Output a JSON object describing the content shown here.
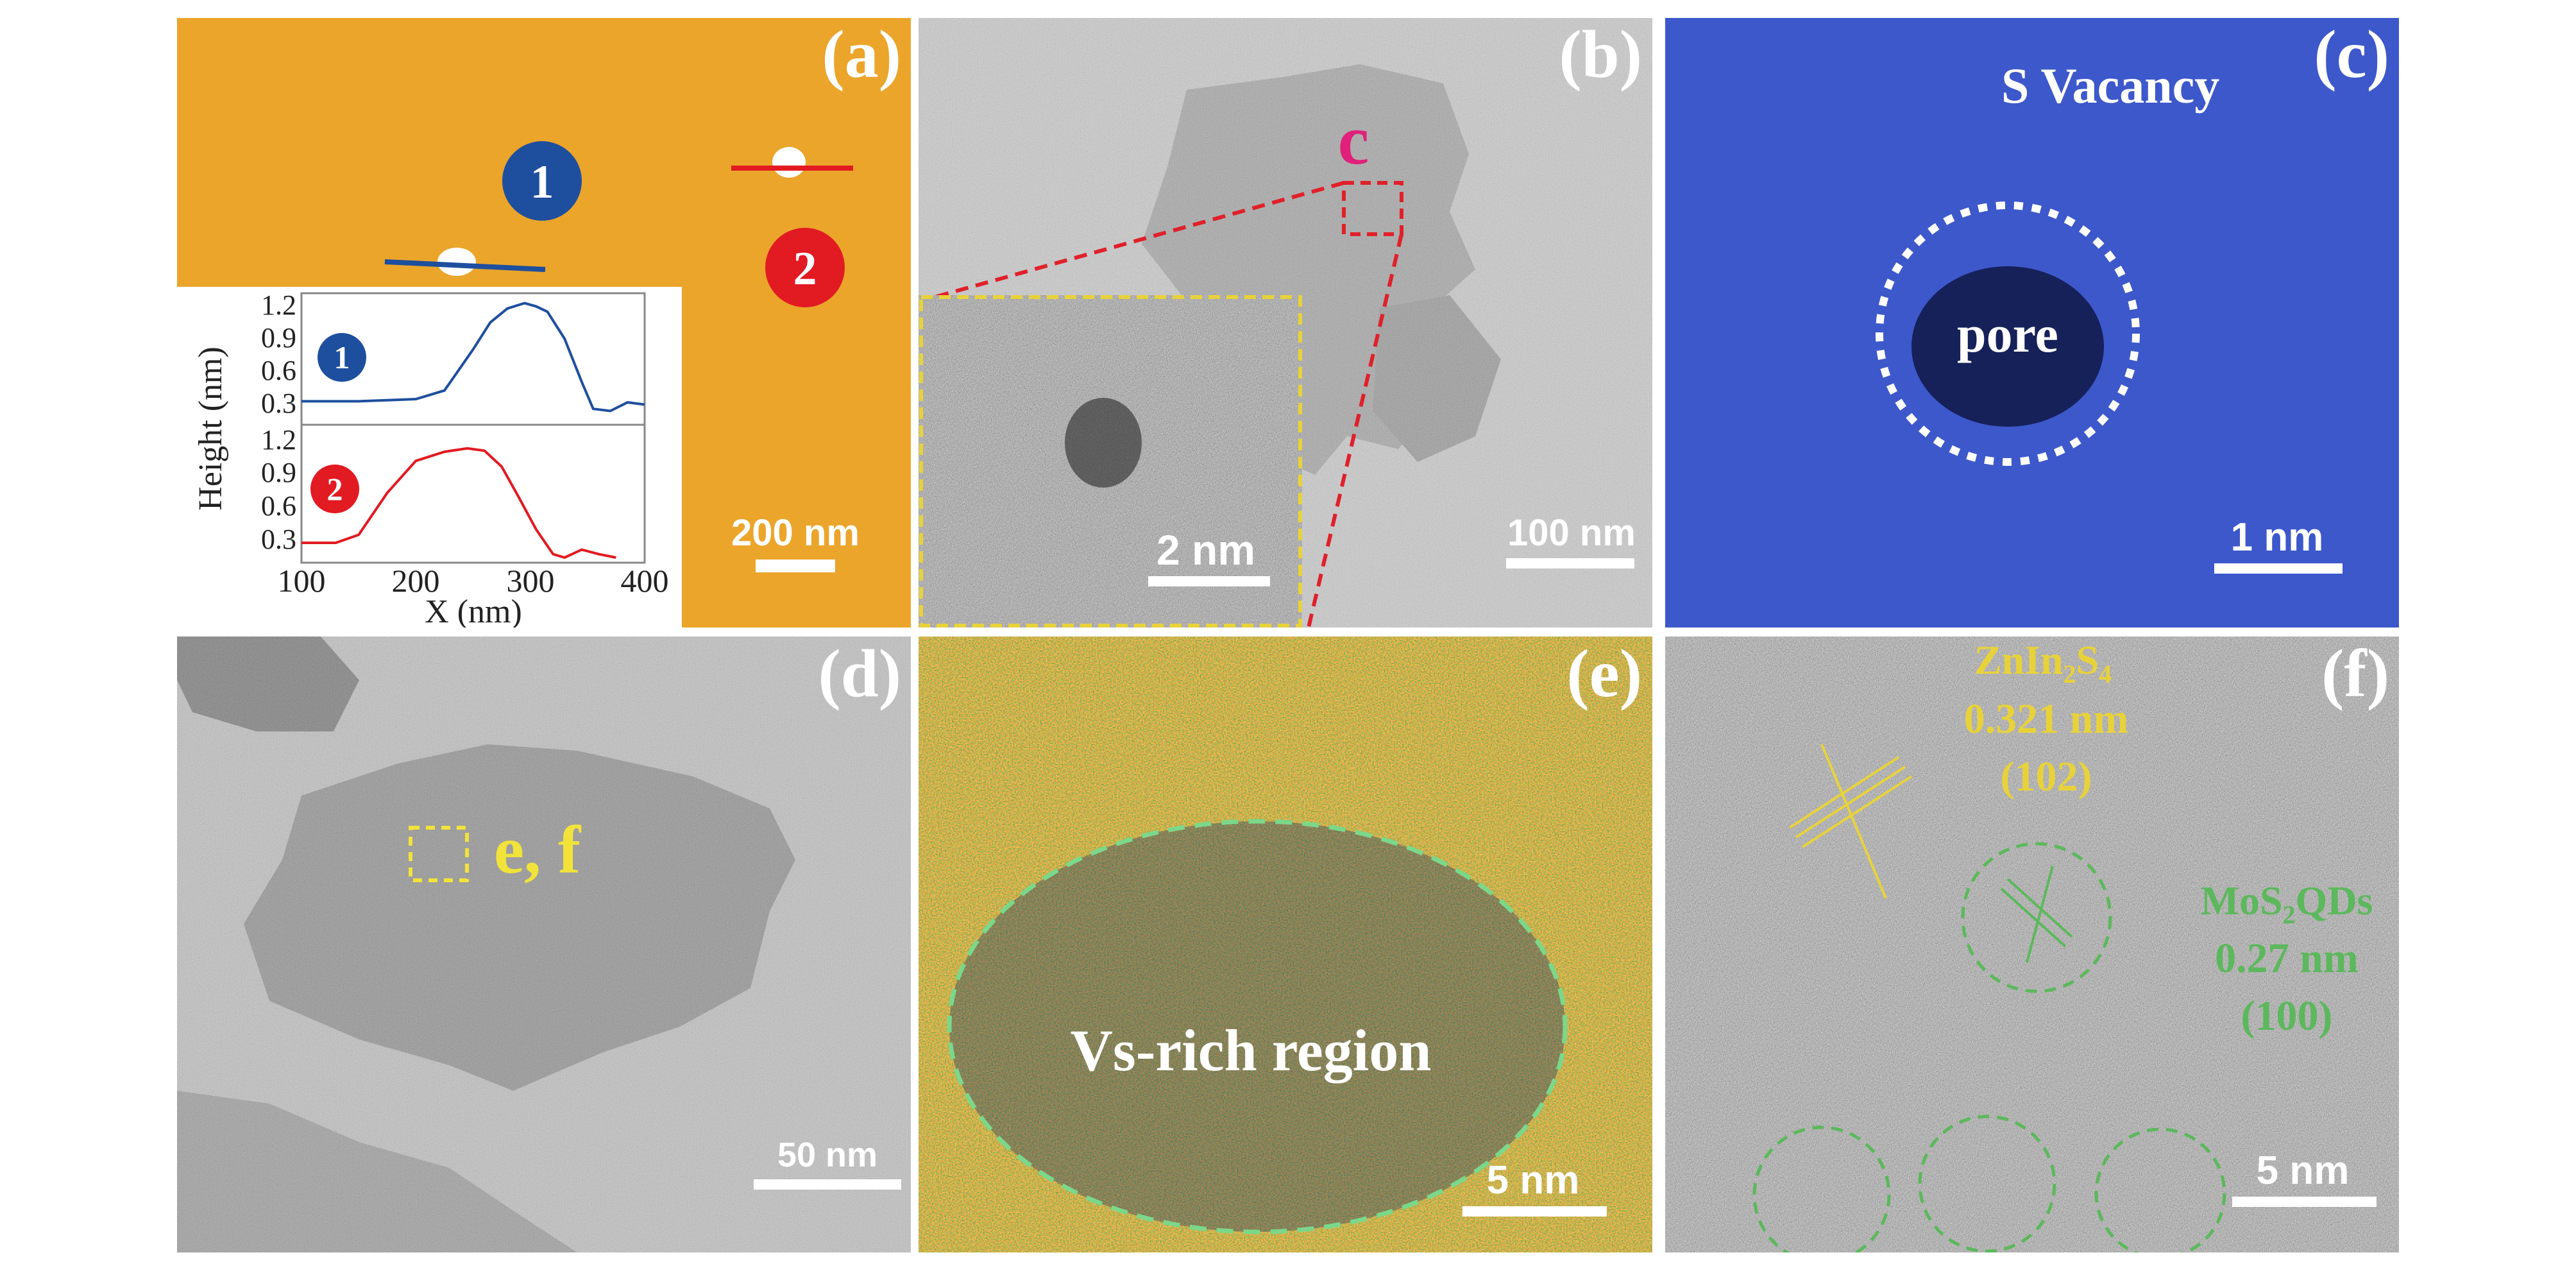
{
  "panels": {
    "a": {
      "label": "(a)",
      "marker_1": "1",
      "marker_2": "2",
      "scale_bar": "200 nm",
      "inset": {
        "ylabel": "Height (nm)",
        "xlabel": "X (nm)",
        "yticks": [
          "1.2",
          "0.9",
          "0.6",
          "0.3"
        ],
        "xticks": [
          "100",
          "200",
          "300",
          "400"
        ],
        "series_labels": [
          "1",
          "2"
        ]
      },
      "colors": {
        "background": "#EBA52B",
        "blue": "#1E4F9E",
        "red": "#E21A22"
      }
    },
    "b": {
      "label": "(b)",
      "roi_label": "c",
      "inset_scale_bar": "2 nm",
      "scale_bar": "100 nm",
      "colors": {
        "roi": "#E0202A",
        "inset_frame": "#E8D23A",
        "roi_label": "#E0207A"
      }
    },
    "c": {
      "label": "(c)",
      "annotation": "S Vacancy",
      "pore_label": "pore",
      "scale_bar": "1 nm"
    },
    "d": {
      "label": "(d)",
      "roi_label": "e, f",
      "scale_bar": "50 nm",
      "colors": {
        "roi": "#F2E33A"
      }
    },
    "e": {
      "label": "(e)",
      "region_label": "Vs-rich region",
      "scale_bar": "5 nm",
      "colors": {
        "ellipse": "#7BD88A"
      }
    },
    "f": {
      "label": "(f)",
      "zis": {
        "name": "ZnIn2S4",
        "spacing": "0.321 nm",
        "plane": "(102)"
      },
      "mos2": {
        "name": "MoS2 QDs",
        "spacing": "0.27 nm",
        "plane": "(100)"
      },
      "scale_bar": "5 nm",
      "colors": {
        "zis": "#E8D23A",
        "mos2": "#5CB85C"
      }
    }
  },
  "chart_data": {
    "type": "line",
    "xlabel": "X (nm)",
    "ylabel": "Height (nm)",
    "xlim": [
      100,
      400
    ],
    "panels": [
      {
        "name": "1",
        "ylim": [
          0.3,
          1.35
        ],
        "x": [
          100,
          150,
          200,
          225,
          250,
          265,
          280,
          295,
          305,
          315,
          330,
          345,
          355,
          370,
          385,
          400
        ],
        "values": [
          0.42,
          0.42,
          0.44,
          0.52,
          0.9,
          1.15,
          1.28,
          1.33,
          1.3,
          1.25,
          1.0,
          0.6,
          0.35,
          0.33,
          0.41,
          0.39
        ]
      },
      {
        "name": "2",
        "ylim": [
          0.3,
          1.35
        ],
        "x": [
          100,
          130,
          150,
          175,
          200,
          225,
          245,
          260,
          275,
          290,
          305,
          320,
          330,
          345,
          360,
          375
        ],
        "values": [
          0.38,
          0.38,
          0.45,
          0.82,
          1.1,
          1.18,
          1.21,
          1.19,
          1.05,
          0.78,
          0.5,
          0.28,
          0.25,
          0.32,
          0.28,
          0.25
        ]
      }
    ]
  }
}
